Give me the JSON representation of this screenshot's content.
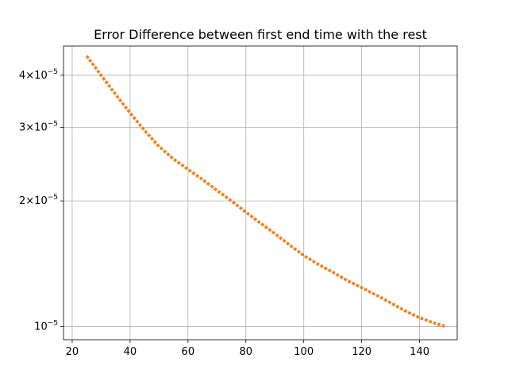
{
  "chart_data": {
    "type": "line",
    "title": "Error Difference between first end time with the rest",
    "xlabel": "",
    "ylabel": "",
    "xlim": [
      17,
      153
    ],
    "ylim": [
      9.3e-06,
      4.7e-05
    ],
    "yscale": "log",
    "grid": true,
    "x_ticks": [
      {
        "value": 20,
        "label": "20"
      },
      {
        "value": 40,
        "label": "40"
      },
      {
        "value": 60,
        "label": "60"
      },
      {
        "value": 80,
        "label": "80"
      },
      {
        "value": 100,
        "label": "100"
      },
      {
        "value": 120,
        "label": "120"
      },
      {
        "value": 140,
        "label": "140"
      }
    ],
    "y_ticks": [
      {
        "value": 1e-05,
        "base": "10",
        "exp": "−5",
        "coef": ""
      },
      {
        "value": 2e-05,
        "base": "10",
        "exp": "−5",
        "coef": "2×"
      },
      {
        "value": 3e-05,
        "base": "10",
        "exp": "−5",
        "coef": "3×"
      },
      {
        "value": 4e-05,
        "base": "10",
        "exp": "−5",
        "coef": "4×"
      }
    ],
    "series": [
      {
        "color": "#1f77b4",
        "style": "dotted",
        "x": [
          25,
          30,
          35,
          40,
          45,
          50,
          55,
          60,
          65,
          70,
          75,
          80,
          85,
          90,
          95,
          100,
          105,
          110,
          115,
          120,
          125,
          130,
          135,
          140,
          145,
          149
        ],
        "y": [
          4.45e-05,
          4e-05,
          3.6e-05,
          3.25e-05,
          2.95e-05,
          2.7e-05,
          2.52e-05,
          2.38e-05,
          2.25e-05,
          2.12e-05,
          2e-05,
          1.88e-05,
          1.77e-05,
          1.67e-05,
          1.57e-05,
          1.48e-05,
          1.41e-05,
          1.35e-05,
          1.29e-05,
          1.24e-05,
          1.19e-05,
          1.14e-05,
          1.09e-05,
          1.05e-05,
          1.02e-05,
          1e-05
        ]
      },
      {
        "color": "#ff7f0e",
        "style": "dotted",
        "x": [
          25,
          30,
          35,
          40,
          45,
          50,
          55,
          60,
          65,
          70,
          75,
          80,
          85,
          90,
          95,
          100,
          105,
          110,
          115,
          120,
          125,
          130,
          135,
          140,
          145,
          149
        ],
        "y": [
          4.45e-05,
          4e-05,
          3.6e-05,
          3.25e-05,
          2.95e-05,
          2.7e-05,
          2.52e-05,
          2.38e-05,
          2.25e-05,
          2.12e-05,
          2e-05,
          1.88e-05,
          1.77e-05,
          1.67e-05,
          1.57e-05,
          1.48e-05,
          1.41e-05,
          1.35e-05,
          1.29e-05,
          1.24e-05,
          1.19e-05,
          1.14e-05,
          1.09e-05,
          1.05e-05,
          1.02e-05,
          1e-05
        ]
      }
    ]
  }
}
